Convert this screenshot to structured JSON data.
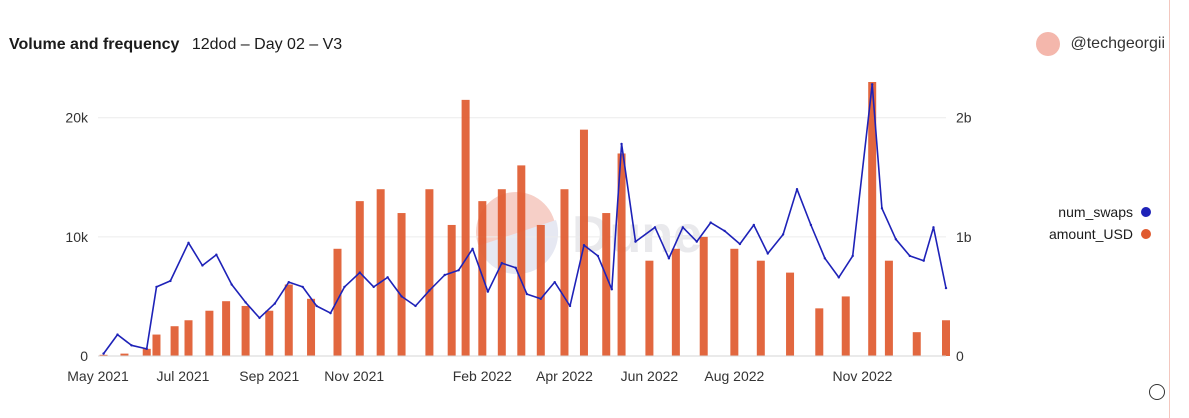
{
  "header": {
    "title": "Volume and frequency",
    "subtitle": "12dod – Day 02 – V3",
    "author": "@techgeorgii"
  },
  "watermark": {
    "text": "Dune"
  },
  "colors": {
    "num_swaps": "#1e22b8",
    "amount_USD": "#e05a2f",
    "avatar": "#f4b7ac"
  },
  "icons": {
    "avatar": "avatar-circle-icon",
    "corner": "info-circle-icon"
  },
  "chart_data": {
    "type": "bar+line",
    "x_type": "date",
    "x_range": [
      "2021-05-01",
      "2022-12-31"
    ],
    "x_ticks": [
      {
        "date": "2021-05-01",
        "label": "May 2021"
      },
      {
        "date": "2021-07-01",
        "label": "Jul 2021"
      },
      {
        "date": "2021-09-01",
        "label": "Sep 2021"
      },
      {
        "date": "2021-11-01",
        "label": "Nov 2021"
      },
      {
        "date": "2022-02-01",
        "label": "Feb 2022"
      },
      {
        "date": "2022-04-01",
        "label": "Apr 2022"
      },
      {
        "date": "2022-06-01",
        "label": "Jun 2022"
      },
      {
        "date": "2022-08-01",
        "label": "Aug 2022"
      },
      {
        "date": "2022-11-01",
        "label": "Nov 2022"
      }
    ],
    "y_left": {
      "range": [
        0,
        23000
      ],
      "ticks": [
        {
          "v": 0,
          "label": "0"
        },
        {
          "v": 10000,
          "label": "10k"
        },
        {
          "v": 20000,
          "label": "20k"
        }
      ]
    },
    "y_right": {
      "range": [
        0,
        2300000000
      ],
      "ticks": [
        {
          "v": 0,
          "label": "0"
        },
        {
          "v": 1000000000,
          "label": "1b"
        },
        {
          "v": 2000000000,
          "label": "2b"
        }
      ]
    },
    "legend_position": "right",
    "grid": "horizontal",
    "series": [
      {
        "name": "num_swaps",
        "type": "line",
        "axis": "left",
        "color": "#1e22b8",
        "points": [
          [
            "2021-05-05",
            200
          ],
          [
            "2021-05-15",
            1800
          ],
          [
            "2021-05-25",
            900
          ],
          [
            "2021-06-05",
            600
          ],
          [
            "2021-06-12",
            5800
          ],
          [
            "2021-06-22",
            6300
          ],
          [
            "2021-07-05",
            9500
          ],
          [
            "2021-07-15",
            7600
          ],
          [
            "2021-07-25",
            8500
          ],
          [
            "2021-08-05",
            6000
          ],
          [
            "2021-08-15",
            4500
          ],
          [
            "2021-08-25",
            3200
          ],
          [
            "2021-09-05",
            4400
          ],
          [
            "2021-09-15",
            6200
          ],
          [
            "2021-09-25",
            5800
          ],
          [
            "2021-10-05",
            4200
          ],
          [
            "2021-10-15",
            3600
          ],
          [
            "2021-10-25",
            5800
          ],
          [
            "2021-11-05",
            7000
          ],
          [
            "2021-11-15",
            5800
          ],
          [
            "2021-11-25",
            6600
          ],
          [
            "2021-12-05",
            5000
          ],
          [
            "2021-12-15",
            4200
          ],
          [
            "2021-12-25",
            5500
          ],
          [
            "2022-01-05",
            6800
          ],
          [
            "2022-01-15",
            7200
          ],
          [
            "2022-01-25",
            9000
          ],
          [
            "2022-02-05",
            5400
          ],
          [
            "2022-02-15",
            7800
          ],
          [
            "2022-02-25",
            7400
          ],
          [
            "2022-03-05",
            5200
          ],
          [
            "2022-03-15",
            4800
          ],
          [
            "2022-03-25",
            6200
          ],
          [
            "2022-04-05",
            4200
          ],
          [
            "2022-04-15",
            9300
          ],
          [
            "2022-04-25",
            8400
          ],
          [
            "2022-05-05",
            5600
          ],
          [
            "2022-05-12",
            17800
          ],
          [
            "2022-05-22",
            9600
          ],
          [
            "2022-06-05",
            10800
          ],
          [
            "2022-06-15",
            8200
          ],
          [
            "2022-06-25",
            10800
          ],
          [
            "2022-07-05",
            9600
          ],
          [
            "2022-07-15",
            11200
          ],
          [
            "2022-07-25",
            10500
          ],
          [
            "2022-08-05",
            9400
          ],
          [
            "2022-08-15",
            11000
          ],
          [
            "2022-08-25",
            8600
          ],
          [
            "2022-09-05",
            10200
          ],
          [
            "2022-09-15",
            14000
          ],
          [
            "2022-09-25",
            11000
          ],
          [
            "2022-10-05",
            8200
          ],
          [
            "2022-10-15",
            6600
          ],
          [
            "2022-10-25",
            8400
          ],
          [
            "2022-11-08",
            22800
          ],
          [
            "2022-11-15",
            12400
          ],
          [
            "2022-11-25",
            9800
          ],
          [
            "2022-12-05",
            8400
          ],
          [
            "2022-12-15",
            8000
          ],
          [
            "2022-12-22",
            10800
          ],
          [
            "2022-12-31",
            5700
          ]
        ]
      },
      {
        "name": "amount_USD",
        "type": "bar",
        "axis": "right",
        "color": "#e05a2f",
        "points": [
          [
            "2021-05-05",
            10000000
          ],
          [
            "2021-05-20",
            20000000
          ],
          [
            "2021-06-05",
            60000000
          ],
          [
            "2021-06-12",
            180000000
          ],
          [
            "2021-06-25",
            250000000
          ],
          [
            "2021-07-05",
            300000000
          ],
          [
            "2021-07-20",
            380000000
          ],
          [
            "2021-08-01",
            460000000
          ],
          [
            "2021-08-15",
            420000000
          ],
          [
            "2021-09-01",
            380000000
          ],
          [
            "2021-09-15",
            600000000
          ],
          [
            "2021-10-01",
            480000000
          ],
          [
            "2021-10-20",
            900000000
          ],
          [
            "2021-11-05",
            1300000000
          ],
          [
            "2021-11-20",
            1400000000
          ],
          [
            "2021-12-05",
            1200000000
          ],
          [
            "2021-12-25",
            1400000000
          ],
          [
            "2022-01-10",
            1100000000
          ],
          [
            "2022-01-20",
            2150000000
          ],
          [
            "2022-02-01",
            1300000000
          ],
          [
            "2022-02-15",
            1400000000
          ],
          [
            "2022-03-01",
            1600000000
          ],
          [
            "2022-03-15",
            1100000000
          ],
          [
            "2022-04-01",
            1400000000
          ],
          [
            "2022-04-15",
            1900000000
          ],
          [
            "2022-05-01",
            1200000000
          ],
          [
            "2022-05-12",
            1700000000
          ],
          [
            "2022-06-01",
            800000000
          ],
          [
            "2022-06-20",
            900000000
          ],
          [
            "2022-07-10",
            1000000000
          ],
          [
            "2022-08-01",
            900000000
          ],
          [
            "2022-08-20",
            800000000
          ],
          [
            "2022-09-10",
            700000000
          ],
          [
            "2022-10-01",
            400000000
          ],
          [
            "2022-10-20",
            500000000
          ],
          [
            "2022-11-08",
            2300000000
          ],
          [
            "2022-11-20",
            800000000
          ],
          [
            "2022-12-10",
            200000000
          ],
          [
            "2022-12-31",
            300000000
          ]
        ]
      }
    ]
  }
}
